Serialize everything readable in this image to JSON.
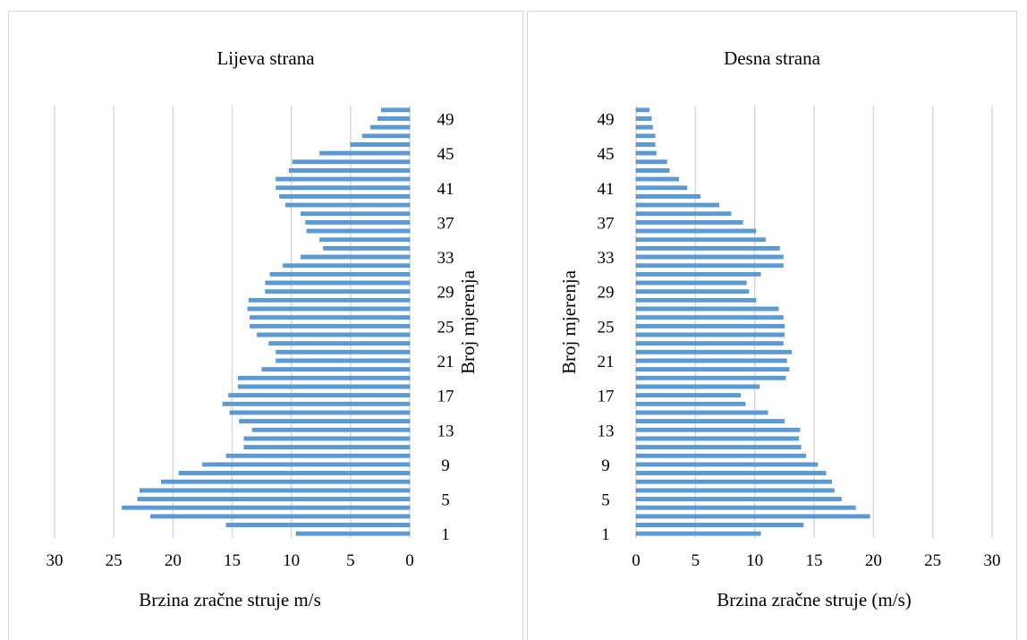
{
  "chart_data": [
    {
      "type": "bar",
      "orientation": "horizontal",
      "title": "Lijeva strana",
      "xlabel": "Brzina zračne struje m/s",
      "ylabel": "Broj mjerenja",
      "xlim": [
        0,
        30
      ],
      "x_reversed": true,
      "x_ticks": [
        30,
        25,
        20,
        15,
        10,
        5,
        0
      ],
      "y_ticks": [
        1,
        5,
        9,
        13,
        17,
        21,
        25,
        29,
        33,
        37,
        41,
        45,
        49
      ],
      "categories": [
        1,
        2,
        3,
        4,
        5,
        6,
        7,
        8,
        9,
        10,
        11,
        12,
        13,
        14,
        15,
        16,
        17,
        18,
        19,
        20,
        21,
        22,
        23,
        24,
        25,
        26,
        27,
        28,
        29,
        30,
        31,
        32,
        33,
        34,
        35,
        36,
        37,
        38,
        39,
        40,
        41,
        42,
        43,
        44,
        45,
        46,
        47,
        48,
        49,
        50
      ],
      "values": [
        9.6,
        15.5,
        21.9,
        24.3,
        23.0,
        22.8,
        21.0,
        19.5,
        17.5,
        15.5,
        14.0,
        14.0,
        13.3,
        14.4,
        15.2,
        15.8,
        15.3,
        14.5,
        14.5,
        12.5,
        11.3,
        11.3,
        11.9,
        12.9,
        13.5,
        13.5,
        13.7,
        13.6,
        12.2,
        12.2,
        11.8,
        10.7,
        9.2,
        7.3,
        7.6,
        8.7,
        8.8,
        9.2,
        10.5,
        11.0,
        11.3,
        11.3,
        10.2,
        9.9,
        7.6,
        5.0,
        4.0,
        3.3,
        2.7,
        2.4
      ],
      "grid": true,
      "bar_color": "#5b9bd5"
    },
    {
      "type": "bar",
      "orientation": "horizontal",
      "title": "Desna strana",
      "xlabel": "Brzina zračne struje (m/s)",
      "ylabel": "Broj mjerenja",
      "xlim": [
        0,
        30
      ],
      "x_reversed": false,
      "x_ticks": [
        0,
        5,
        10,
        15,
        20,
        25,
        30
      ],
      "y_ticks": [
        1,
        5,
        9,
        13,
        17,
        21,
        25,
        29,
        33,
        37,
        41,
        45,
        49
      ],
      "categories": [
        1,
        2,
        3,
        4,
        5,
        6,
        7,
        8,
        9,
        10,
        11,
        12,
        13,
        14,
        15,
        16,
        17,
        18,
        19,
        20,
        21,
        22,
        23,
        24,
        25,
        26,
        27,
        28,
        29,
        30,
        31,
        32,
        33,
        34,
        35,
        36,
        37,
        38,
        39,
        40,
        41,
        42,
        43,
        44,
        45,
        46,
        47,
        48,
        49,
        50
      ],
      "values": [
        10.5,
        14.1,
        19.7,
        18.5,
        17.3,
        16.7,
        16.5,
        16.0,
        15.3,
        14.3,
        13.9,
        13.7,
        13.8,
        12.5,
        11.1,
        9.2,
        8.8,
        10.4,
        12.6,
        12.9,
        12.7,
        13.1,
        12.4,
        12.5,
        12.5,
        12.4,
        12.0,
        10.1,
        9.5,
        9.3,
        10.5,
        12.4,
        12.4,
        12.1,
        10.9,
        10.1,
        9.0,
        8.0,
        7.0,
        5.4,
        4.3,
        3.6,
        2.8,
        2.6,
        1.7,
        1.6,
        1.6,
        1.4,
        1.3,
        1.1
      ],
      "grid": true,
      "bar_color": "#5b9bd5"
    }
  ]
}
